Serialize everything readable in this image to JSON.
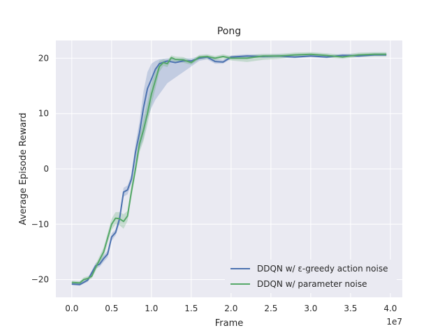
{
  "chart_data": {
    "type": "line",
    "title": "Pong",
    "xlabel": "Frame",
    "ylabel": "Average Episode Reward",
    "x_offset_label": "1e7",
    "xlim": [
      -0.2,
      4.15
    ],
    "ylim": [
      -23.2,
      23.2
    ],
    "x_ticks": [
      0.0,
      0.5,
      1.0,
      1.5,
      2.0,
      2.5,
      3.0,
      3.5,
      4.0
    ],
    "x_tick_labels": [
      "0.0",
      "0.5",
      "1.0",
      "1.5",
      "2.0",
      "2.5",
      "3.0",
      "3.5",
      "4.0"
    ],
    "y_ticks": [
      -20,
      -10,
      0,
      10,
      20
    ],
    "y_tick_labels": [
      "−20",
      "−10",
      "0",
      "10",
      "20"
    ],
    "grid": true,
    "legend_position": "lower-right",
    "series": [
      {
        "name": "DDQN w/ ε-greedy action noise",
        "color": "#4c72b0",
        "x": [
          0.0,
          0.1,
          0.2,
          0.3,
          0.35,
          0.4,
          0.45,
          0.5,
          0.55,
          0.6,
          0.65,
          0.7,
          0.75,
          0.8,
          0.85,
          0.9,
          0.95,
          1.0,
          1.05,
          1.1,
          1.2,
          1.3,
          1.4,
          1.5,
          1.6,
          1.7,
          1.8,
          1.9,
          2.0,
          2.2,
          2.4,
          2.6,
          2.8,
          3.0,
          3.2,
          3.4,
          3.6,
          3.8,
          3.95
        ],
        "y": [
          -20.8,
          -20.9,
          -20.1,
          -17.5,
          -17.2,
          -16.2,
          -15.4,
          -12.3,
          -11.5,
          -9.0,
          -4.2,
          -3.8,
          -1.8,
          3.0,
          6.5,
          11.0,
          14.5,
          16.2,
          18.0,
          19.0,
          19.5,
          19.2,
          19.5,
          19.5,
          20.0,
          20.2,
          19.4,
          19.3,
          20.2,
          20.4,
          20.3,
          20.4,
          20.2,
          20.4,
          20.2,
          20.5,
          20.4,
          20.6,
          20.6
        ],
        "band_lower": [
          -21.0,
          -21.1,
          -20.4,
          -18.0,
          -17.7,
          -16.8,
          -16.0,
          -13.0,
          -12.0,
          -9.8,
          -5.0,
          -4.6,
          -2.6,
          1.0,
          3.5,
          5.5,
          9.0,
          11.0,
          12.5,
          13.5,
          15.5,
          16.5,
          17.5,
          18.5,
          19.5,
          19.8,
          19.0,
          19.0,
          19.9,
          20.1,
          20.0,
          20.1,
          20.0,
          20.2,
          20.0,
          20.3,
          20.2,
          20.4,
          20.4
        ],
        "band_upper": [
          -20.6,
          -20.7,
          -19.8,
          -17.0,
          -16.7,
          -15.6,
          -14.8,
          -11.6,
          -11.0,
          -8.2,
          -3.4,
          -3.0,
          -1.0,
          4.5,
          8.5,
          14.0,
          17.5,
          19.0,
          19.5,
          19.8,
          20.0,
          19.9,
          20.0,
          20.0,
          20.3,
          20.5,
          19.8,
          19.7,
          20.5,
          20.7,
          20.6,
          20.7,
          20.5,
          20.7,
          20.5,
          20.8,
          20.7,
          20.9,
          20.9
        ]
      },
      {
        "name": "DDQN w/ parameter noise",
        "color": "#55a868",
        "x": [
          0.0,
          0.1,
          0.15,
          0.2,
          0.25,
          0.3,
          0.4,
          0.45,
          0.5,
          0.55,
          0.6,
          0.65,
          0.7,
          0.75,
          0.8,
          0.85,
          0.9,
          0.95,
          1.0,
          1.05,
          1.1,
          1.15,
          1.2,
          1.25,
          1.3,
          1.4,
          1.5,
          1.6,
          1.7,
          1.8,
          1.9,
          2.0,
          2.2,
          2.4,
          2.6,
          2.8,
          3.0,
          3.2,
          3.4,
          3.6,
          3.8,
          3.95
        ],
        "y": [
          -20.5,
          -20.6,
          -20.0,
          -19.8,
          -19.4,
          -17.8,
          -15.0,
          -12.5,
          -10.0,
          -8.9,
          -9.0,
          -9.5,
          -8.5,
          -4.0,
          0.0,
          4.5,
          7.0,
          10.0,
          13.5,
          16.0,
          18.5,
          19.2,
          19.0,
          20.1,
          19.8,
          19.7,
          19.2,
          20.2,
          20.3,
          20.0,
          20.3,
          20.0,
          20.0,
          20.4,
          20.4,
          20.6,
          20.7,
          20.5,
          20.2,
          20.6,
          20.7,
          20.7
        ],
        "band_lower": [
          -20.8,
          -20.9,
          -20.4,
          -20.2,
          -19.8,
          -18.4,
          -15.8,
          -13.4,
          -11.0,
          -10.0,
          -10.2,
          -10.8,
          -9.4,
          -5.0,
          -1.0,
          3.0,
          5.0,
          8.0,
          11.5,
          14.5,
          17.5,
          18.6,
          18.4,
          19.6,
          19.3,
          19.2,
          18.8,
          19.8,
          19.9,
          19.6,
          19.9,
          19.6,
          19.3,
          19.7,
          19.9,
          20.2,
          20.3,
          20.1,
          19.9,
          20.2,
          20.3,
          20.3
        ],
        "band_upper": [
          -20.2,
          -20.3,
          -19.6,
          -19.4,
          -19.0,
          -17.2,
          -14.2,
          -11.6,
          -9.0,
          -7.8,
          -7.8,
          -8.2,
          -7.6,
          -3.0,
          1.0,
          6.0,
          9.0,
          12.0,
          15.5,
          17.5,
          19.5,
          19.8,
          19.6,
          20.5,
          20.3,
          20.2,
          19.6,
          20.6,
          20.7,
          20.4,
          20.7,
          20.4,
          20.5,
          20.8,
          20.8,
          21.0,
          21.1,
          20.9,
          20.6,
          21.0,
          21.1,
          21.1
        ]
      }
    ]
  }
}
